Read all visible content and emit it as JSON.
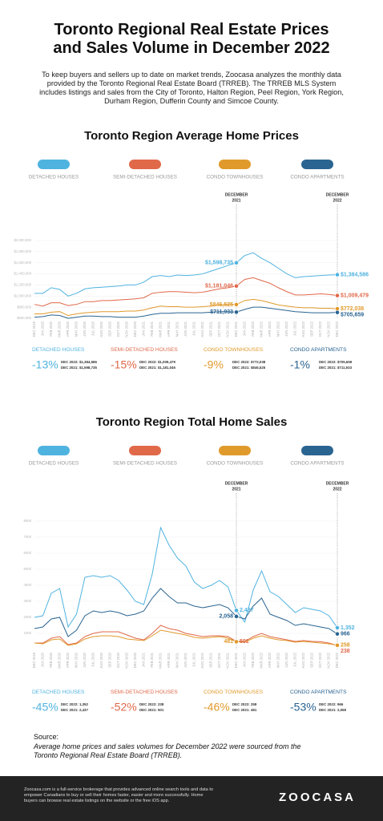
{
  "header": {
    "title": "Toronto Regional Real Estate Prices and Sales Volume in December 2022",
    "intro": "To keep buyers and sellers up to date on market trends, Zoocasa analyzes the monthly data provided by the Toronto Regional Real Estate Board (TRREB). The TRREB MLS System includes listings and sales from the City of Toronto, Halton Region, Peel Region, York Region, Durham Region, Dufferin County and Simcoe County."
  },
  "chart_data": [
    {
      "type": "line",
      "title": "Toronto Region Average Home Prices",
      "categories": [
        "DEC 2019",
        "JAN 2020",
        "FEB 2020",
        "MAR 2020",
        "APR 2020",
        "MAY 2020",
        "JUN 2020",
        "JUL 2020",
        "AUG 2020",
        "SEP 2020",
        "OCT 2020",
        "NOV 2020",
        "DEC 2020",
        "JAN 2021",
        "FEB 2021",
        "MAR 2021",
        "APR 2021",
        "MAY 2021",
        "JUN 2021",
        "JUL 2021",
        "AUG 2021",
        "SEP 2021",
        "OCT 2021",
        "NOV 2021",
        "DEC 2021",
        "JAN 2022",
        "FEB 2022",
        "MAR 2022",
        "APR 2022",
        "MAY 2022",
        "JUN 2022",
        "JUL 2022",
        "AUG 2022",
        "SEP 2022",
        "OCT 2022",
        "NOV 2022",
        "DEC 2022"
      ],
      "ylim": [
        600000,
        2000000
      ],
      "yticks": [
        {
          "value": 600000,
          "label": "$600,000"
        },
        {
          "value": 800000,
          "label": "$800,000"
        },
        {
          "value": 1000000,
          "label": "$1,000,000"
        },
        {
          "value": 1200000,
          "label": "$1,200,000"
        },
        {
          "value": 1400000,
          "label": "$1,400,000"
        },
        {
          "value": 1600000,
          "label": "$1,600,000"
        },
        {
          "value": 1800000,
          "label": "$1,800,000"
        },
        {
          "value": 2000000,
          "label": "$2,000,000"
        }
      ],
      "grid": true,
      "markers": [
        {
          "at": "DEC 2021",
          "label_lines": [
            "DECEMBER",
            "2021"
          ]
        },
        {
          "at": "DEC 2022",
          "label_lines": [
            "DECEMBER",
            "2022"
          ]
        }
      ],
      "series": [
        {
          "name": "DETACHED HOUSES",
          "color": "#4fb3e0",
          "values": [
            1050000,
            1050000,
            1150000,
            1120000,
            1000000,
            1050000,
            1130000,
            1150000,
            1160000,
            1170000,
            1180000,
            1200000,
            1200000,
            1250000,
            1350000,
            1370000,
            1350000,
            1380000,
            1370000,
            1380000,
            1400000,
            1450000,
            1500000,
            1550000,
            1598735,
            1730000,
            1780000,
            1680000,
            1600000,
            1500000,
            1400000,
            1330000,
            1350000,
            1360000,
            1370000,
            1380000,
            1384586
          ],
          "value_labels": [
            null,
            null,
            null,
            null,
            null,
            null,
            null,
            null,
            null,
            null,
            null,
            null,
            null,
            null,
            null,
            null,
            null,
            null,
            null,
            null,
            null,
            null,
            null,
            null,
            "$1,598,735",
            null,
            null,
            null,
            null,
            null,
            null,
            null,
            null,
            null,
            null,
            null,
            "$1,384,586"
          ]
        },
        {
          "name": "SEMI-DETACHED HOUSES",
          "color": "#e0694a",
          "values": [
            850000,
            820000,
            880000,
            880000,
            830000,
            850000,
            900000,
            900000,
            920000,
            920000,
            930000,
            940000,
            950000,
            970000,
            1050000,
            1070000,
            1080000,
            1080000,
            1070000,
            1060000,
            1070000,
            1100000,
            1130000,
            1150000,
            1181046,
            1300000,
            1330000,
            1280000,
            1230000,
            1150000,
            1080000,
            1020000,
            1020000,
            1030000,
            1040000,
            1030000,
            1009479
          ],
          "value_labels": [
            null,
            null,
            null,
            null,
            null,
            null,
            null,
            null,
            null,
            null,
            null,
            null,
            null,
            null,
            null,
            null,
            null,
            null,
            null,
            null,
            null,
            null,
            null,
            null,
            "$1,181,046",
            null,
            null,
            null,
            null,
            null,
            null,
            null,
            null,
            null,
            null,
            null,
            "$1,009,479"
          ]
        },
        {
          "name": "CONDO TOWNHOUSES",
          "color": "#e09a2c",
          "values": [
            680000,
            680000,
            710000,
            720000,
            650000,
            680000,
            700000,
            710000,
            720000,
            720000,
            720000,
            730000,
            730000,
            750000,
            790000,
            820000,
            810000,
            810000,
            800000,
            800000,
            810000,
            820000,
            840000,
            850000,
            846525,
            920000,
            940000,
            920000,
            880000,
            840000,
            820000,
            800000,
            790000,
            790000,
            780000,
            780000,
            772038
          ],
          "value_labels": [
            null,
            null,
            null,
            null,
            null,
            null,
            null,
            null,
            null,
            null,
            null,
            null,
            null,
            null,
            null,
            null,
            null,
            null,
            null,
            null,
            null,
            null,
            null,
            null,
            "$846,525",
            null,
            null,
            null,
            null,
            null,
            null,
            null,
            null,
            null,
            null,
            null,
            "$772,038"
          ]
        },
        {
          "name": "CONDO APARTMENTS",
          "color": "#2a6491",
          "values": [
            620000,
            630000,
            660000,
            650000,
            600000,
            620000,
            640000,
            640000,
            630000,
            630000,
            620000,
            620000,
            620000,
            640000,
            670000,
            690000,
            690000,
            700000,
            700000,
            700000,
            700000,
            710000,
            720000,
            720000,
            711933,
            760000,
            800000,
            800000,
            780000,
            760000,
            740000,
            720000,
            710000,
            700000,
            700000,
            700000,
            705659
          ],
          "value_labels": [
            null,
            null,
            null,
            null,
            null,
            null,
            null,
            null,
            null,
            null,
            null,
            null,
            null,
            null,
            null,
            null,
            null,
            null,
            null,
            null,
            null,
            null,
            null,
            null,
            "$711,933",
            null,
            null,
            null,
            null,
            null,
            null,
            null,
            null,
            null,
            null,
            null,
            "$705,659"
          ]
        }
      ],
      "summary": [
        {
          "change": "-13%",
          "dec_2022": "DEC 2022: $1,384,586",
          "dec_2021": "DEC 2021: $1,598,735"
        },
        {
          "change": "-15%",
          "dec_2022": "DEC 2022: $1,009,479",
          "dec_2021": "DEC 2021: $1,181,046"
        },
        {
          "change": "-9%",
          "dec_2022": "DEC 2022: $772,038",
          "dec_2021": "DEC 2021: $846,525"
        },
        {
          "change": "-1%",
          "dec_2022": "DEC 2022: $705,659",
          "dec_2021": "DEC 2021: $711,933"
        }
      ]
    },
    {
      "type": "line",
      "title": "Toronto Region Total Home Sales",
      "categories": [
        "DEC 2019",
        "JAN 2020",
        "FEB 2020",
        "MAR 2020",
        "APR 2020",
        "MAY 2020",
        "JUN 2020",
        "JUL 2020",
        "AUG 2020",
        "SEP 2020",
        "OCT 2020",
        "NOV 2020",
        "DEC 2020",
        "JAN 2021",
        "FEB 2021",
        "MAR 2021",
        "APR 2021",
        "MAY 2021",
        "JUN 2021",
        "JUL 2021",
        "AUG 2021",
        "SEP 2021",
        "OCT 2021",
        "NOV 2021",
        "DEC 2021",
        "JAN 2022",
        "FEB 2022",
        "MAR 2022",
        "APR 2022",
        "MAY 2022",
        "JUN 2022",
        "JUL 2022",
        "AUG 2022",
        "SEP 2022",
        "OCT 2022",
        "NOV 2022",
        "DEC 2022"
      ],
      "ylim": [
        0,
        8000
      ],
      "yticks": [
        1000,
        2000,
        3000,
        4000,
        5000,
        6000,
        7000,
        8000
      ],
      "grid": true,
      "markers": [
        {
          "at": "DEC 2021",
          "label_lines": [
            "DECEMBER",
            "2021"
          ]
        },
        {
          "at": "DEC 2022",
          "label_lines": [
            "DECEMBER",
            "2022"
          ]
        }
      ],
      "series": [
        {
          "name": "DETACHED HOUSES",
          "color": "#4fb3e0",
          "values": [
            2000,
            2100,
            3500,
            3800,
            1400,
            2200,
            4500,
            4600,
            4500,
            4600,
            4300,
            3700,
            3000,
            2800,
            4700,
            7600,
            6500,
            5700,
            5200,
            4200,
            3800,
            4000,
            4300,
            3900,
            2437,
            1700,
            3700,
            4900,
            3600,
            3300,
            2800,
            2300,
            2600,
            2500,
            2400,
            2100,
            1352
          ],
          "value_labels": [
            null,
            null,
            null,
            null,
            null,
            null,
            null,
            null,
            null,
            null,
            null,
            null,
            null,
            null,
            null,
            null,
            null,
            null,
            null,
            null,
            null,
            null,
            null,
            null,
            "2,437",
            null,
            null,
            null,
            null,
            null,
            null,
            null,
            null,
            null,
            null,
            null,
            "1,352"
          ]
        },
        {
          "name": "SEMI-DETACHED HOUSES",
          "color": "#e0694a",
          "values": [
            400,
            400,
            700,
            800,
            300,
            400,
            800,
            1000,
            1100,
            1100,
            1100,
            900,
            700,
            600,
            1000,
            1500,
            1300,
            1200,
            1000,
            900,
            800,
            850,
            850,
            800,
            501,
            500,
            800,
            1000,
            800,
            700,
            600,
            500,
            550,
            500,
            480,
            400,
            238
          ],
          "value_labels": [
            null,
            null,
            null,
            null,
            null,
            null,
            null,
            null,
            null,
            null,
            null,
            null,
            null,
            null,
            null,
            null,
            null,
            null,
            null,
            null,
            null,
            null,
            null,
            null,
            "501",
            null,
            null,
            null,
            null,
            null,
            null,
            null,
            null,
            null,
            null,
            null,
            "238"
          ]
        },
        {
          "name": "CONDO TOWNHOUSES",
          "color": "#e09a2c",
          "values": [
            400,
            350,
            600,
            650,
            250,
            350,
            650,
            800,
            850,
            850,
            800,
            650,
            600,
            550,
            850,
            1200,
            1100,
            1000,
            900,
            750,
            700,
            750,
            800,
            700,
            481,
            450,
            700,
            850,
            700,
            600,
            550,
            450,
            500,
            450,
            400,
            350,
            258
          ],
          "value_labels": [
            null,
            null,
            null,
            null,
            null,
            null,
            null,
            null,
            null,
            null,
            null,
            null,
            null,
            null,
            null,
            null,
            null,
            null,
            null,
            null,
            null,
            null,
            null,
            null,
            "481",
            null,
            null,
            null,
            null,
            null,
            null,
            null,
            null,
            null,
            null,
            null,
            "258"
          ]
        },
        {
          "name": "CONDO APARTMENTS",
          "color": "#2a6491",
          "values": [
            1300,
            1400,
            1900,
            2000,
            800,
            1200,
            2100,
            2400,
            2300,
            2400,
            2300,
            2100,
            2200,
            2400,
            3200,
            3800,
            3300,
            2900,
            2900,
            2700,
            2600,
            2700,
            2800,
            2600,
            2058,
            1900,
            2700,
            3200,
            2200,
            2000,
            1800,
            1500,
            1600,
            1500,
            1400,
            1300,
            966
          ],
          "value_labels": [
            null,
            null,
            null,
            null,
            null,
            null,
            null,
            null,
            null,
            null,
            null,
            null,
            null,
            null,
            null,
            null,
            null,
            null,
            null,
            null,
            null,
            null,
            null,
            null,
            "2,058",
            null,
            null,
            null,
            null,
            null,
            null,
            null,
            null,
            null,
            null,
            null,
            "966"
          ]
        }
      ],
      "summary": [
        {
          "change": "-45%",
          "dec_2022": "DEC 2022: 1,352",
          "dec_2021": "DEC 2021: 2,437"
        },
        {
          "change": "-52%",
          "dec_2022": "DEC 2022: 238",
          "dec_2021": "DEC 2021: 501"
        },
        {
          "change": "-46%",
          "dec_2022": "DEC 2022: 258",
          "dec_2021": "DEC 2021: 481"
        },
        {
          "change": "-53%",
          "dec_2022": "DEC 2022: 966",
          "dec_2021": "DEC 2021: 2,058"
        }
      ]
    }
  ],
  "source": {
    "label": "Source:",
    "text": "Average home prices and sales volumes for December 2022 were sourced from the Toronto Regional Real Estate Board (TRREB)."
  },
  "footer": {
    "text": "Zoocasa.com is a full-service brokerage that provides advanced online search tools and data to empower Canadians to buy or sell their homes faster, easier and more successfully. Home buyers can browse real estate listings on the website or the free iOS app.",
    "logo": "ZOOCASA"
  }
}
